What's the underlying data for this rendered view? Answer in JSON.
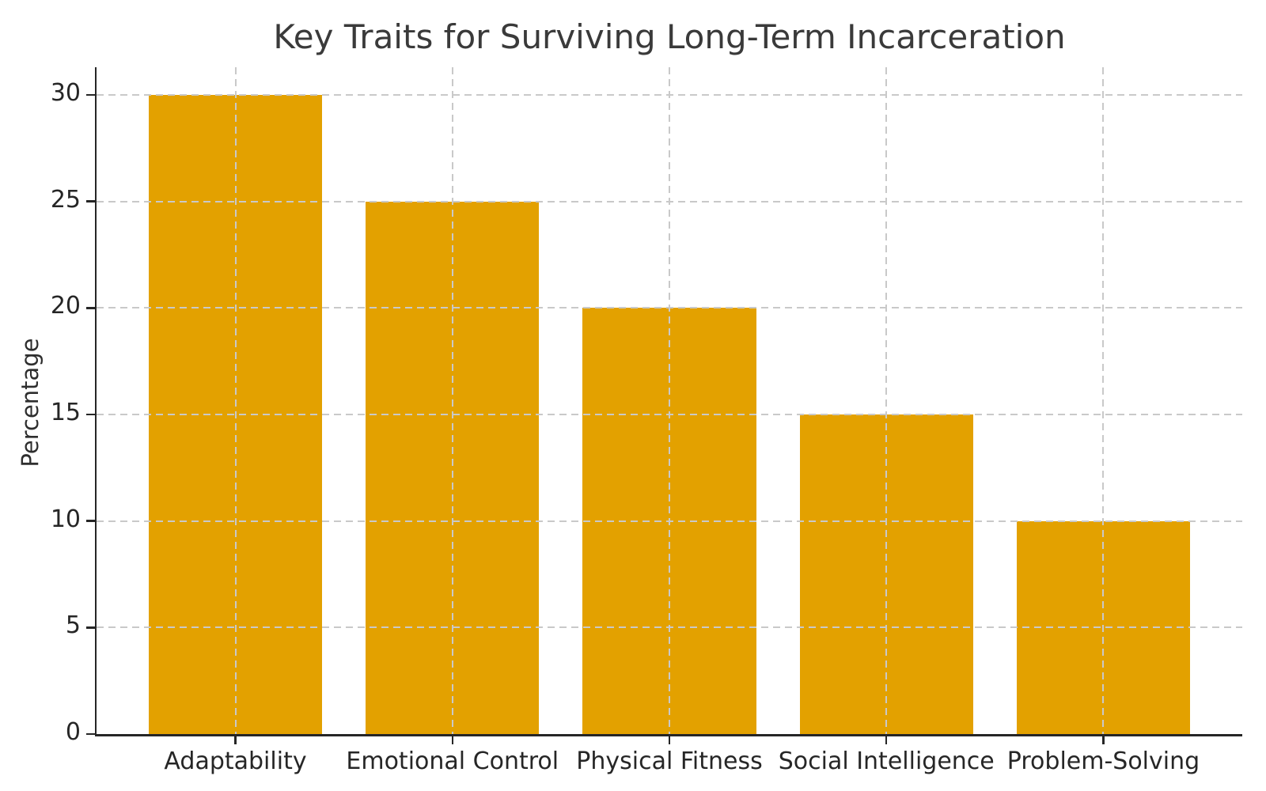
{
  "chart_data": {
    "type": "bar",
    "title": "Key Traits for Surviving Long-Term Incarceration",
    "categories": [
      "Adaptability",
      "Emotional Control",
      "Physical Fitness",
      "Social Intelligence",
      "Problem-Solving"
    ],
    "values": [
      30,
      25,
      20,
      15,
      10
    ],
    "xlabel": "",
    "ylabel": "Percentage",
    "ylim": [
      0,
      31.3
    ],
    "yticks": [
      0,
      5,
      10,
      15,
      20,
      25,
      30
    ],
    "legend": "none",
    "grid": "both, dashed, drawn above bars",
    "bar_color": "#E3A100",
    "grid_color": "#C9C9C9",
    "axis_color": "#262626",
    "title_color": "#3A3A3A",
    "background_color": "#FFFFFF"
  }
}
